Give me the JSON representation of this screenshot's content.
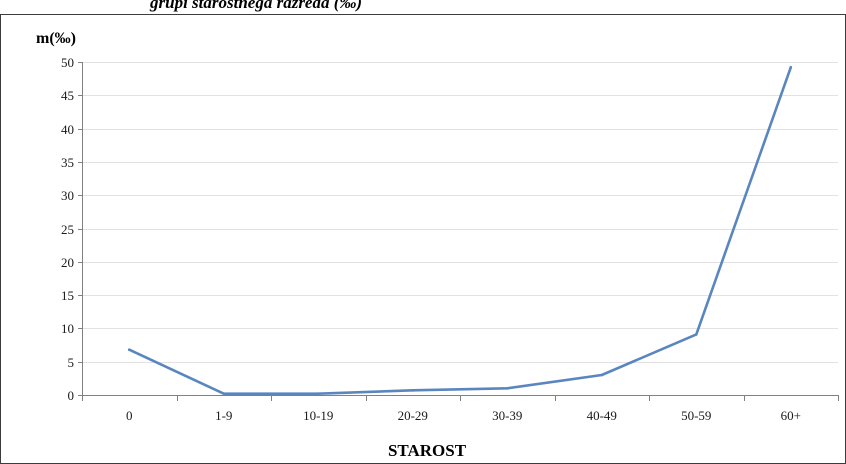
{
  "header_text": "grupi starostnega razreda (‰)",
  "chart_data": {
    "type": "line",
    "title": "",
    "ylabel": "m(‰)",
    "xlabel": "STAROST",
    "categories": [
      "0",
      "1-9",
      "10-19",
      "20-29",
      "30-39",
      "40-49",
      "50-59",
      "60+"
    ],
    "series": [
      {
        "values": [
          6.8,
          0.2,
          0.2,
          0.7,
          1.0,
          3.0,
          9.1,
          49.2
        ]
      }
    ],
    "ylim": [
      0,
      50
    ],
    "yticks": [
      0,
      5,
      10,
      15,
      20,
      25,
      30,
      35,
      40,
      45,
      50
    ],
    "grid": true,
    "legend": "none",
    "colors": {
      "line": "#5a86bf",
      "grid": "#e2e2e2",
      "axis": "#808080",
      "frame": "#3c3c3c"
    }
  }
}
